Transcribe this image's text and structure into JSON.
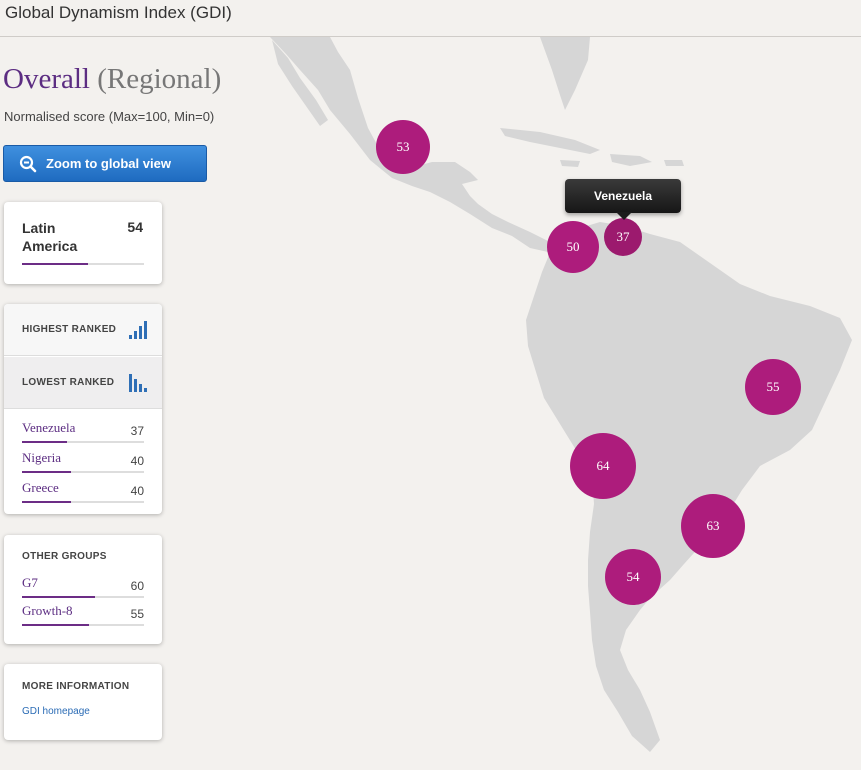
{
  "header": {
    "title": "Global Dynamism Index (GDI)"
  },
  "view": {
    "title_main": "Overall",
    "title_scope": "(Regional)",
    "subtitle": "Normalised score (Max=100, Min=0)"
  },
  "zoom_button": {
    "label": "Zoom to global view",
    "icon": "magnifier-minus-icon"
  },
  "region": {
    "name": "Latin America",
    "score": "54",
    "fraction": 0.54
  },
  "ranking": {
    "highest_label": "HIGHEST RANKED",
    "lowest_label": "LOWEST RANKED",
    "items": [
      {
        "name": "Venezuela",
        "value": "37",
        "fraction": 0.37
      },
      {
        "name": "Nigeria",
        "value": "40",
        "fraction": 0.4
      },
      {
        "name": "Greece",
        "value": "40",
        "fraction": 0.4
      }
    ]
  },
  "other_groups": {
    "heading": "OTHER GROUPS",
    "items": [
      {
        "name": "G7",
        "value": "60",
        "fraction": 0.6
      },
      {
        "name": "Growth-8",
        "value": "55",
        "fraction": 0.55
      }
    ]
  },
  "more_info": {
    "heading": "MORE INFORMATION",
    "link": "GDI homepage"
  },
  "map": {
    "tooltip": "Venezuela",
    "bubbles": [
      {
        "id": "mexico",
        "value": "53"
      },
      {
        "id": "colombia",
        "value": "50"
      },
      {
        "id": "venezuela",
        "value": "37"
      },
      {
        "id": "brazil",
        "value": "55"
      },
      {
        "id": "peru",
        "value": "64"
      },
      {
        "id": "uruguay",
        "value": "63"
      },
      {
        "id": "chile",
        "value": "54"
      }
    ]
  },
  "colors": {
    "accent": "#5c2d82",
    "bubble": "#ad1c7c",
    "button": "#2f7fd3",
    "land": "#d6d6d6",
    "background": "#f3f1ee"
  }
}
